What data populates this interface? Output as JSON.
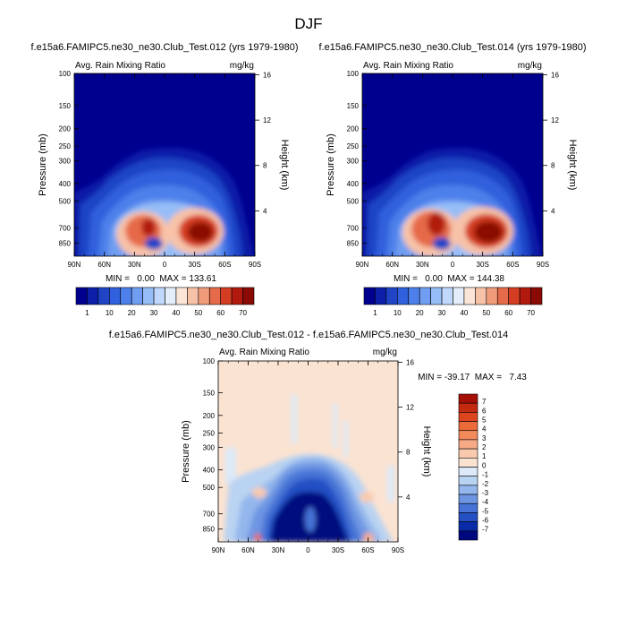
{
  "figure": {
    "season": "DJF"
  },
  "chart_data": [
    {
      "type": "heatmap",
      "title": "f.e15a6.FAMIPC5.ne30_ne30.Club_Test.012 (yrs 1979-1980)",
      "subtitle_left": "Avg. Rain Mixing Ratio",
      "subtitle_right": "mg/kg",
      "ylabel": "Pressure (mb)",
      "y2label": "Height (km)",
      "x_ticks": [
        "90N",
        "60N",
        "30N",
        "0",
        "30S",
        "60S",
        "90S"
      ],
      "y_ticks": [
        "100",
        "150",
        "200",
        "250",
        "300",
        "400",
        "500",
        "700",
        "850"
      ],
      "y_ticks_values": [
        100,
        150,
        200,
        250,
        300,
        400,
        500,
        700,
        850
      ],
      "y2_ticks": [
        "16",
        "12",
        "8",
        "4"
      ],
      "y2_ticks_values": [
        16,
        12,
        8,
        4
      ],
      "ylim": [
        100,
        1000
      ],
      "ylog": true,
      "stats": "MIN =   0.00  MAX = 133.61",
      "min": 0.0,
      "max": 133.61,
      "colorbar_labels": [
        "1",
        "10",
        "20",
        "30",
        "40",
        "50",
        "60",
        "70"
      ],
      "colorbar_colors": [
        "#00008f",
        "#0d1fa8",
        "#1f45c6",
        "#3060dd",
        "#4d80ea",
        "#709ef2",
        "#97bdf7",
        "#bfd8fb",
        "#e4eefb",
        "#fbe4d8",
        "#f7c2a8",
        "#f09c7a",
        "#e66b4a",
        "#d43d22",
        "#b21a0e",
        "#8a0a05"
      ],
      "color_ref": "Test.012"
    },
    {
      "type": "heatmap",
      "title": "f.e15a6.FAMIPC5.ne30_ne30.Club_Test.014 (yrs 1979-1980)",
      "subtitle_left": "Avg. Rain Mixing Ratio",
      "subtitle_right": "mg/kg",
      "ylabel": "Pressure (mb)",
      "y2label": "Height (km)",
      "x_ticks": [
        "90N",
        "60N",
        "30N",
        "0",
        "30S",
        "60S",
        "90S"
      ],
      "y_ticks": [
        "100",
        "150",
        "200",
        "250",
        "300",
        "400",
        "500",
        "700",
        "850"
      ],
      "y_ticks_values": [
        100,
        150,
        200,
        250,
        300,
        400,
        500,
        700,
        850
      ],
      "y2_ticks": [
        "16",
        "12",
        "8",
        "4"
      ],
      "y2_ticks_values": [
        16,
        12,
        8,
        4
      ],
      "ylim": [
        100,
        1000
      ],
      "ylog": true,
      "stats": "MIN =   0.00  MAX = 144.38",
      "min": 0.0,
      "max": 144.38,
      "colorbar_labels": [
        "1",
        "10",
        "20",
        "30",
        "40",
        "50",
        "60",
        "70"
      ],
      "colorbar_colors": [
        "#00008f",
        "#0d1fa8",
        "#1f45c6",
        "#3060dd",
        "#4d80ea",
        "#709ef2",
        "#97bdf7",
        "#bfd8fb",
        "#e4eefb",
        "#fbe4d8",
        "#f7c2a8",
        "#f09c7a",
        "#e66b4a",
        "#d43d22",
        "#b21a0e",
        "#8a0a05"
      ],
      "color_ref": "Test.014"
    },
    {
      "type": "heatmap",
      "title": "f.e15a6.FAMIPC5.ne30_ne30.Club_Test.012 - f.e15a6.FAMIPC5.ne30_ne30.Club_Test.014",
      "subtitle_left": "Avg. Rain Mixing Ratio",
      "subtitle_right": "mg/kg",
      "ylabel": "Pressure (mb)",
      "y2label": "Height (km)",
      "x_ticks": [
        "90N",
        "60N",
        "30N",
        "0",
        "30S",
        "60S",
        "90S"
      ],
      "y_ticks": [
        "100",
        "150",
        "200",
        "250",
        "300",
        "400",
        "500",
        "700",
        "850"
      ],
      "y_ticks_values": [
        100,
        150,
        200,
        250,
        300,
        400,
        500,
        700,
        850
      ],
      "y2_ticks": [
        "16",
        "12",
        "8",
        "4"
      ],
      "y2_ticks_values": [
        16,
        12,
        8,
        4
      ],
      "ylim": [
        100,
        1000
      ],
      "ylog": true,
      "stats": "MIN = -39.17  MAX =   7.43",
      "min": -39.17,
      "max": 7.43,
      "colorbar_labels": [
        "7",
        "6",
        "5",
        "4",
        "3",
        "2",
        "1",
        "0",
        "-1",
        "-2",
        "-3",
        "-4",
        "-5",
        "-6",
        "-7"
      ],
      "colorbar_colors": [
        "#a50f05",
        "#c42a10",
        "#dd4520",
        "#eb6a3a",
        "#f28a5c",
        "#f6aa85",
        "#f9c9ad",
        "#fbe3d2",
        "#dbe9f8",
        "#b9d3f2",
        "#93b6ec",
        "#6d95e2",
        "#4773d6",
        "#2450c4",
        "#0a2ba8",
        "#00087e"
      ]
    }
  ]
}
